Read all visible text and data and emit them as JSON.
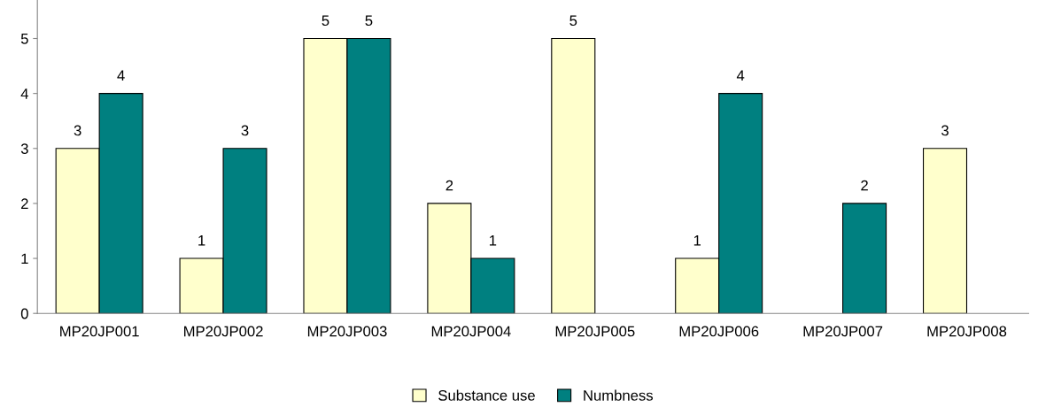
{
  "chart_data": {
    "type": "bar",
    "categories": [
      "MP20JP001",
      "MP20JP002",
      "MP20JP003",
      "MP20JP004",
      "MP20JP005",
      "MP20JP006",
      "MP20JP007",
      "MP20JP008"
    ],
    "series": [
      {
        "name": "Substance use",
        "color": "#ffffcc",
        "values": [
          3,
          1,
          5,
          2,
          5,
          1,
          null,
          3
        ]
      },
      {
        "name": "Numbness",
        "color": "#008080",
        "values": [
          4,
          3,
          5,
          1,
          null,
          4,
          2,
          null
        ]
      }
    ],
    "ylim": [
      0,
      5.7
    ],
    "yticks": [
      0,
      1,
      2,
      3,
      4,
      5
    ],
    "grid": false,
    "legend": "bottom",
    "data_labels": true
  }
}
